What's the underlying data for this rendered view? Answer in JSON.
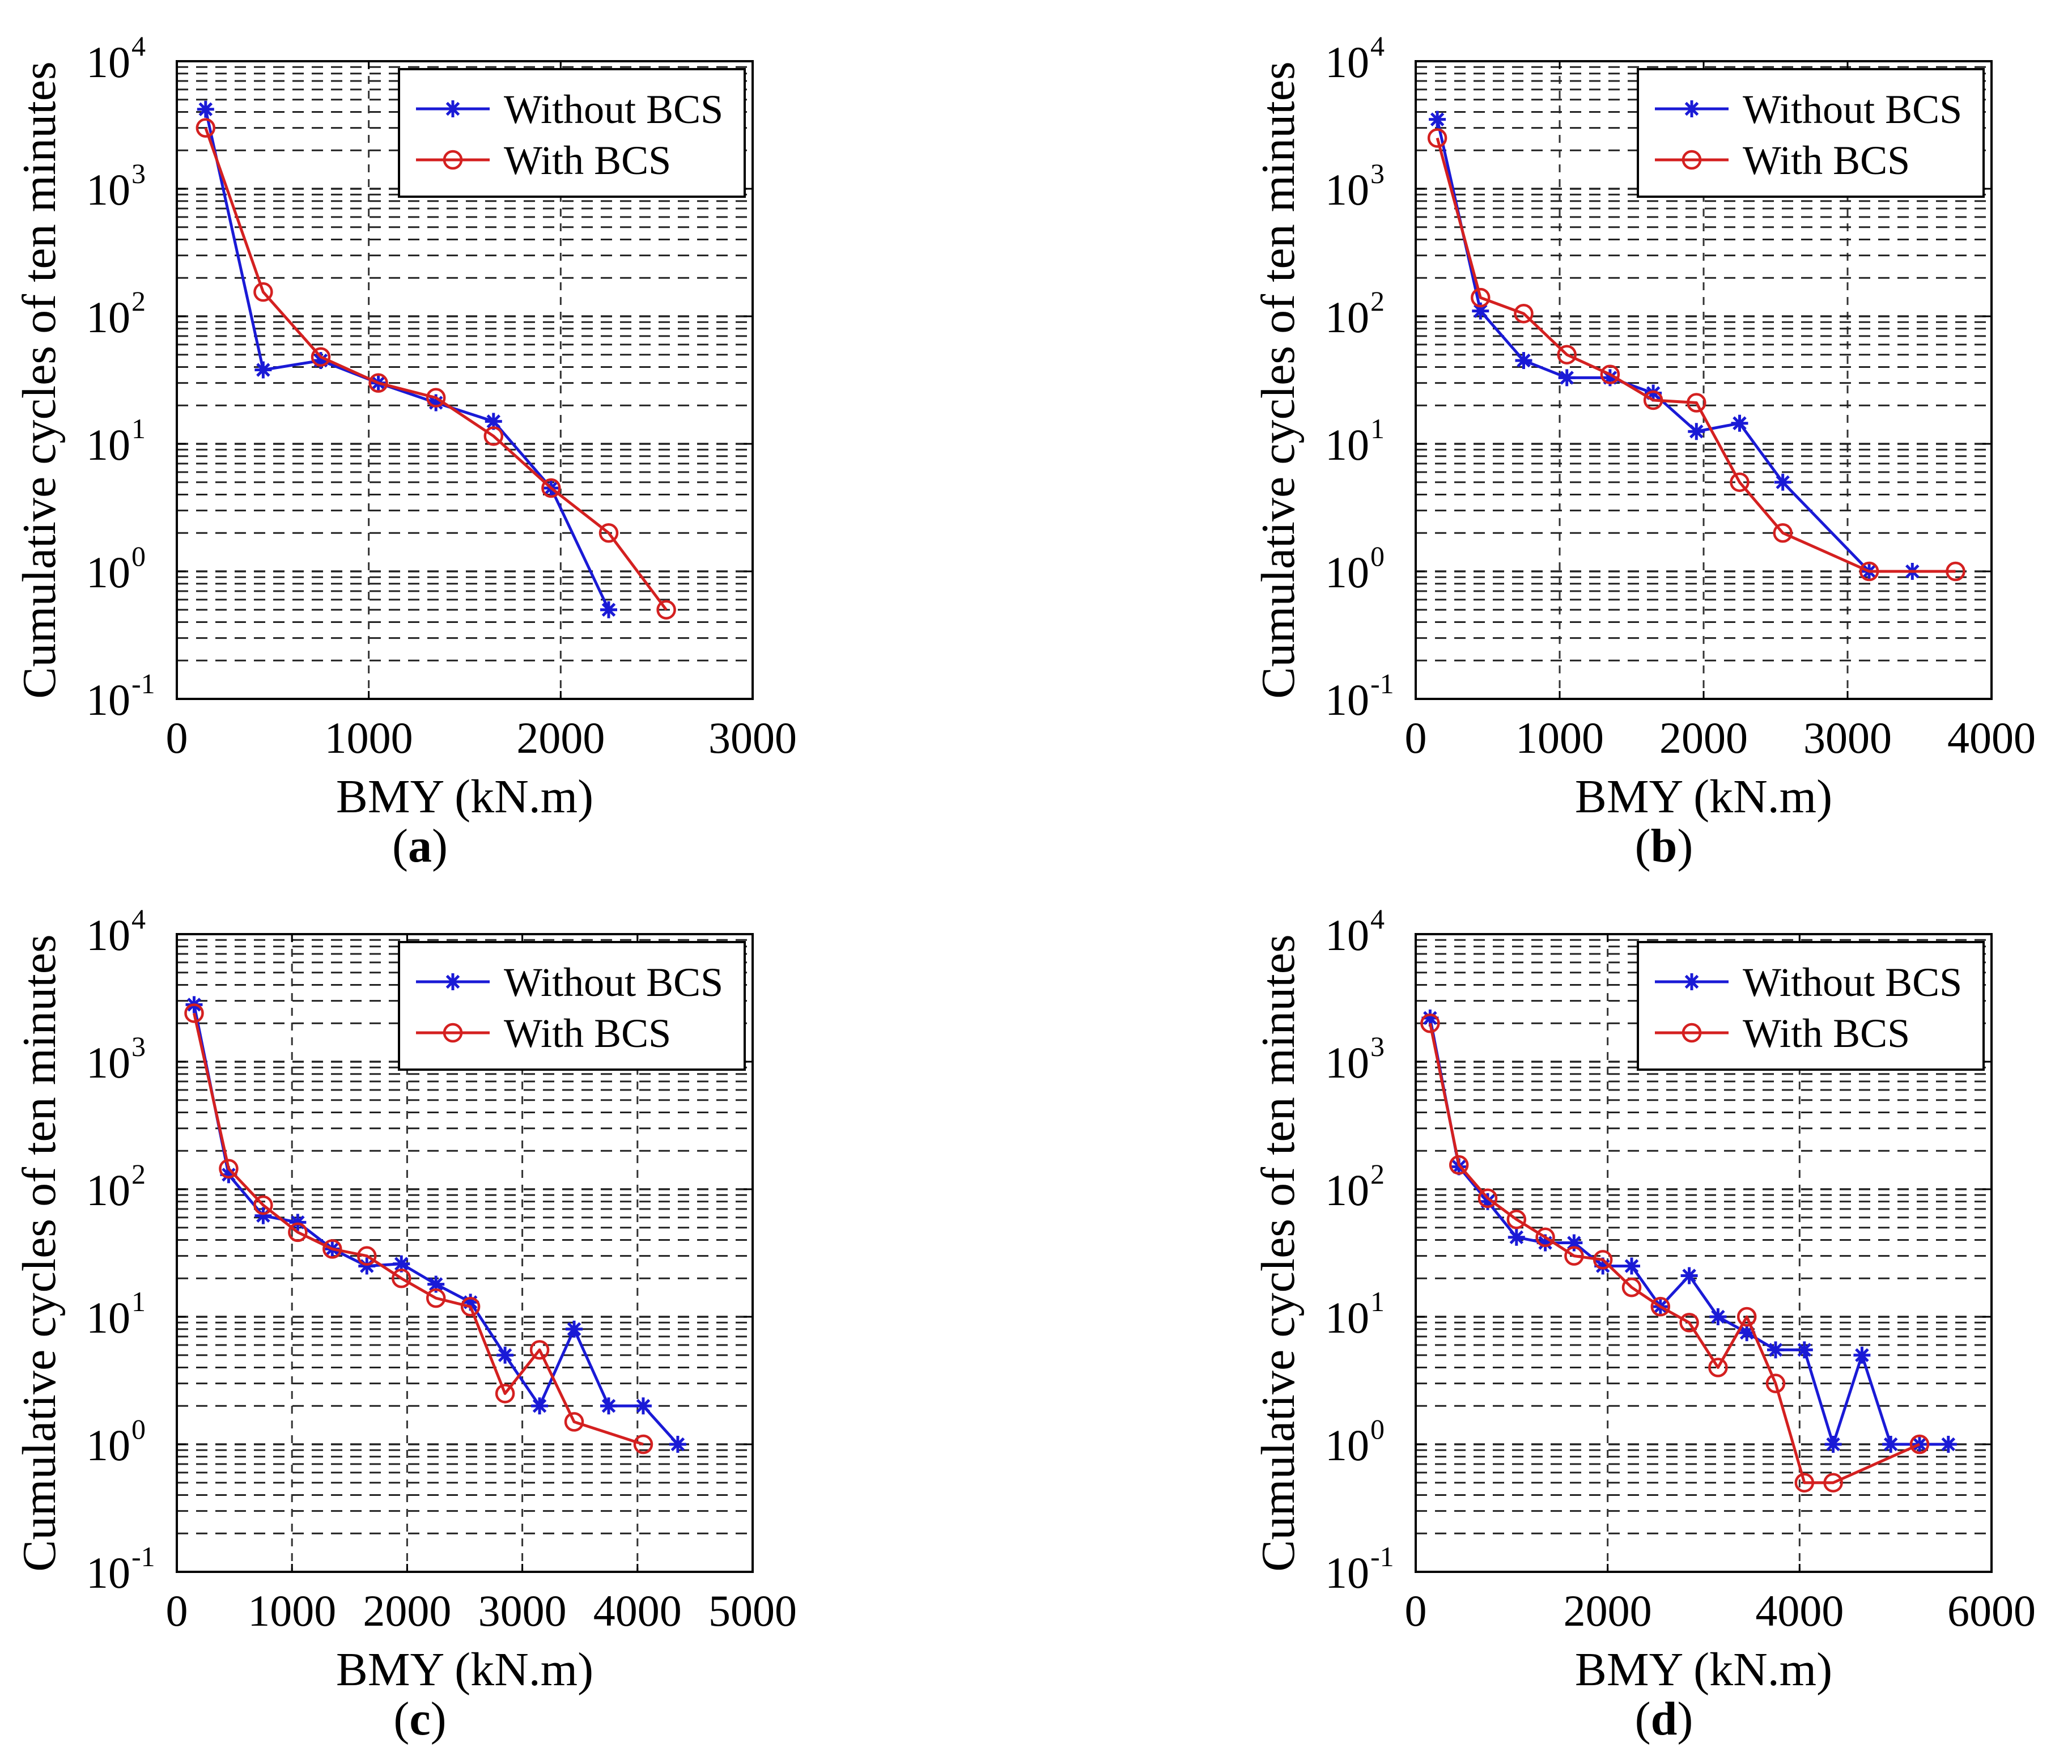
{
  "legend_color_without": "#1a1ad6",
  "legend_color_with": "#d42020",
  "chart_data": [
    {
      "panel": "a",
      "caption_letter": "a",
      "type": "line",
      "xlabel": "BMY (kN.m)",
      "ylabel": "Cumulative cycles of ten minutes",
      "yscale": "log",
      "xlim": [
        0,
        3000
      ],
      "ylim": [
        0.1,
        10000
      ],
      "xticks": [
        "0",
        "1000",
        "2000",
        "3000"
      ],
      "yticks": [
        {
          "base": "10",
          "exp": "-1"
        },
        {
          "base": "10",
          "exp": "0"
        },
        {
          "base": "10",
          "exp": "1"
        },
        {
          "base": "10",
          "exp": "2"
        },
        {
          "base": "10",
          "exp": "3"
        },
        {
          "base": "10",
          "exp": "4"
        }
      ],
      "grid": true,
      "legend_position": "top-right",
      "series": [
        {
          "name": "Without BCS",
          "marker": "asterisk",
          "color": "#1a1ad6",
          "x": [
            150,
            450,
            750,
            1050,
            1350,
            1650,
            1950,
            2250
          ],
          "y": [
            4200,
            38,
            45,
            30,
            21,
            15,
            4.5,
            0.5
          ]
        },
        {
          "name": "With BCS",
          "marker": "circle",
          "color": "#d42020",
          "x": [
            150,
            450,
            750,
            1050,
            1350,
            1650,
            1950,
            2250,
            2550
          ],
          "y": [
            3000,
            155,
            48,
            30,
            23,
            11.5,
            4.5,
            2,
            0.5
          ]
        }
      ]
    },
    {
      "panel": "b",
      "caption_letter": "b",
      "type": "line",
      "xlabel": "BMY (kN.m)",
      "ylabel": "Cumulative cycles of ten minutes",
      "yscale": "log",
      "xlim": [
        0,
        4000
      ],
      "ylim": [
        0.1,
        10000
      ],
      "xticks": [
        "0",
        "1000",
        "2000",
        "3000",
        "4000"
      ],
      "yticks": [
        {
          "base": "10",
          "exp": "-1"
        },
        {
          "base": "10",
          "exp": "0"
        },
        {
          "base": "10",
          "exp": "1"
        },
        {
          "base": "10",
          "exp": "2"
        },
        {
          "base": "10",
          "exp": "3"
        },
        {
          "base": "10",
          "exp": "4"
        }
      ],
      "grid": true,
      "legend_position": "top-right",
      "series": [
        {
          "name": "Without BCS",
          "marker": "asterisk",
          "color": "#1a1ad6",
          "x": [
            150,
            450,
            750,
            1050,
            1350,
            1650,
            1950,
            2250,
            2550,
            3150,
            3450
          ],
          "y": [
            3500,
            110,
            45,
            33,
            33,
            25,
            12.5,
            14.5,
            5,
            1,
            1
          ]
        },
        {
          "name": "With BCS",
          "marker": "circle",
          "color": "#d42020",
          "x": [
            150,
            450,
            750,
            1050,
            1350,
            1650,
            1950,
            2250,
            2550,
            3150,
            3750
          ],
          "y": [
            2500,
            140,
            105,
            50,
            35,
            22,
            21,
            5,
            2,
            1,
            1
          ]
        }
      ]
    },
    {
      "panel": "c",
      "caption_letter": "c",
      "type": "line",
      "xlabel": "BMY (kN.m)",
      "ylabel": "Cumulative cycles of ten minutes",
      "yscale": "log",
      "xlim": [
        0,
        5000
      ],
      "ylim": [
        0.1,
        10000
      ],
      "xticks": [
        "0",
        "1000",
        "2000",
        "3000",
        "4000",
        "5000"
      ],
      "yticks": [
        {
          "base": "10",
          "exp": "-1"
        },
        {
          "base": "10",
          "exp": "0"
        },
        {
          "base": "10",
          "exp": "1"
        },
        {
          "base": "10",
          "exp": "2"
        },
        {
          "base": "10",
          "exp": "3"
        },
        {
          "base": "10",
          "exp": "4"
        }
      ],
      "grid": true,
      "legend_position": "top-right",
      "series": [
        {
          "name": "Without BCS",
          "marker": "asterisk",
          "color": "#1a1ad6",
          "x": [
            150,
            450,
            750,
            1050,
            1350,
            1650,
            1950,
            2250,
            2550,
            2850,
            3150,
            3450,
            3750,
            4050,
            4350
          ],
          "y": [
            2800,
            130,
            62,
            55,
            34,
            25,
            26,
            18,
            13,
            5,
            2,
            8,
            2,
            2,
            1
          ]
        },
        {
          "name": "With BCS",
          "marker": "circle",
          "color": "#d42020",
          "x": [
            150,
            450,
            750,
            1050,
            1350,
            1650,
            1950,
            2250,
            2550,
            2850,
            3150,
            3450,
            4050
          ],
          "y": [
            2400,
            145,
            75,
            46,
            34,
            30,
            20,
            14,
            12,
            2.5,
            5.5,
            1.5,
            1
          ]
        }
      ]
    },
    {
      "panel": "d",
      "caption_letter": "d",
      "type": "line",
      "xlabel": "BMY (kN.m)",
      "ylabel": "Cumulative cycles of ten minutes",
      "yscale": "log",
      "xlim": [
        0,
        6000
      ],
      "ylim": [
        0.1,
        10000
      ],
      "xticks": [
        "0",
        "2000",
        "4000",
        "6000"
      ],
      "yticks": [
        {
          "base": "10",
          "exp": "-1"
        },
        {
          "base": "10",
          "exp": "0"
        },
        {
          "base": "10",
          "exp": "1"
        },
        {
          "base": "10",
          "exp": "2"
        },
        {
          "base": "10",
          "exp": "3"
        },
        {
          "base": "10",
          "exp": "4"
        }
      ],
      "grid": true,
      "legend_position": "top-right",
      "series": [
        {
          "name": "Without BCS",
          "marker": "asterisk",
          "color": "#1a1ad6",
          "x": [
            150,
            450,
            750,
            1050,
            1350,
            1650,
            1950,
            2250,
            2550,
            2850,
            3150,
            3450,
            3750,
            4050,
            4350,
            4650,
            4950,
            5250,
            5550
          ],
          "y": [
            2200,
            150,
            80,
            42,
            38,
            38,
            25,
            25,
            12,
            21,
            10,
            7.5,
            5.5,
            5.5,
            1,
            5,
            1,
            1,
            1
          ]
        },
        {
          "name": "With BCS",
          "marker": "circle",
          "color": "#d42020",
          "x": [
            150,
            450,
            750,
            1050,
            1350,
            1650,
            1950,
            2250,
            2550,
            2850,
            3150,
            3450,
            3750,
            4050,
            4350,
            5250
          ],
          "y": [
            2000,
            155,
            85,
            58,
            42,
            30,
            28,
            17,
            12,
            9,
            4,
            10,
            3,
            0.5,
            0.5,
            1
          ]
        }
      ]
    }
  ]
}
